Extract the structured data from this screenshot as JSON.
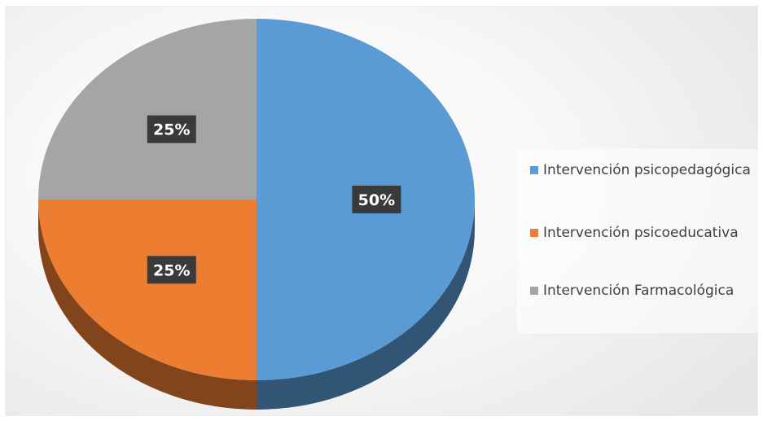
{
  "chart_data": {
    "type": "pie",
    "categories": [
      "Intervención psicopedagógica",
      "Intervención psicoeducativa",
      "Intervención Farmacológica"
    ],
    "values": [
      50,
      25,
      25
    ],
    "data_labels": [
      "50%",
      "25%",
      "25%"
    ],
    "colors": [
      "#5b9bd5",
      "#ed7d31",
      "#a5a5a5"
    ],
    "style": "3d",
    "legend_position": "right",
    "title": ""
  }
}
